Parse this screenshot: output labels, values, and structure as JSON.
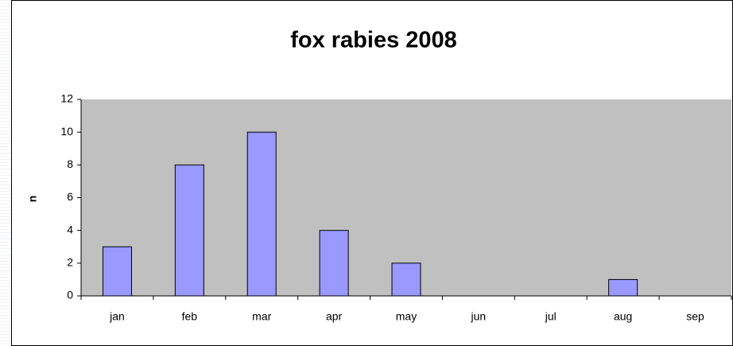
{
  "chart_data": {
    "type": "bar",
    "title": "fox rabies 2008",
    "y_label": "n",
    "categories": [
      "jan",
      "feb",
      "mar",
      "apr",
      "may",
      "jun",
      "jul",
      "aug",
      "sep"
    ],
    "values": [
      3,
      8,
      10,
      4,
      2,
      0,
      0,
      1,
      0
    ],
    "color": "#9999ff",
    "plot_background": "#c0c0c0",
    "ylim": [
      0,
      12
    ],
    "yticks": [
      0,
      2,
      4,
      6,
      8,
      10,
      12
    ],
    "grid": false
  }
}
